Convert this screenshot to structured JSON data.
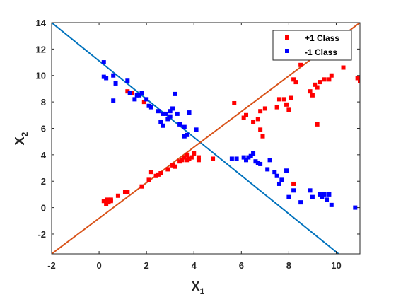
{
  "chart_data": {
    "type": "scatter",
    "xlim": [
      -2,
      11
    ],
    "ylim": [
      -3.5,
      14
    ],
    "xticks": [
      -2,
      0,
      2,
      4,
      6,
      8,
      10
    ],
    "yticks": [
      -2,
      0,
      2,
      4,
      6,
      8,
      10,
      12,
      14
    ],
    "xlabel": {
      "base": "X",
      "sub": "1"
    },
    "ylabel": {
      "base": "X",
      "sub": "2"
    },
    "grid": false,
    "legend_position": "top-right",
    "series": [
      {
        "name": "+1 Class",
        "color": "#ff0000",
        "marker": "square",
        "points": [
          [
            0.2,
            0.5
          ],
          [
            0.3,
            0.3
          ],
          [
            0.35,
            0.6
          ],
          [
            0.4,
            0.4
          ],
          [
            0.5,
            0.6
          ],
          [
            0.5,
            0.5
          ],
          [
            0.8,
            0.9
          ],
          [
            1.1,
            1.2
          ],
          [
            1.2,
            1.2
          ],
          [
            1.8,
            1.6
          ],
          [
            2.1,
            2.1
          ],
          [
            2.2,
            2.7
          ],
          [
            2.4,
            2.4
          ],
          [
            2.5,
            2.5
          ],
          [
            2.6,
            2.6
          ],
          [
            2.9,
            2.9
          ],
          [
            3.1,
            3.2
          ],
          [
            3.2,
            3.1
          ],
          [
            3.4,
            3.5
          ],
          [
            3.5,
            3.6
          ],
          [
            3.6,
            3.8
          ],
          [
            3.7,
            4.0
          ],
          [
            3.7,
            3.6
          ],
          [
            3.8,
            3.7
          ],
          [
            3.9,
            3.8
          ],
          [
            4.0,
            4.1
          ],
          [
            4.2,
            3.8
          ],
          [
            4.2,
            3.6
          ],
          [
            4.8,
            3.7
          ],
          [
            1.2,
            8.8
          ],
          [
            1.4,
            8.7
          ],
          [
            1.9,
            8.0
          ],
          [
            5.7,
            7.9
          ],
          [
            6.1,
            6.8
          ],
          [
            6.2,
            7.0
          ],
          [
            6.5,
            6.5
          ],
          [
            6.7,
            6.7
          ],
          [
            6.8,
            5.9
          ],
          [
            6.8,
            7.3
          ],
          [
            6.9,
            5.4
          ],
          [
            7.0,
            7.5
          ],
          [
            7.5,
            7.6
          ],
          [
            7.6,
            8.2
          ],
          [
            7.8,
            8.2
          ],
          [
            7.9,
            7.8
          ],
          [
            8.0,
            7.4
          ],
          [
            8.1,
            8.3
          ],
          [
            8.2,
            9.7
          ],
          [
            8.3,
            9.5
          ],
          [
            8.5,
            10.8
          ],
          [
            8.9,
            8.8
          ],
          [
            9.0,
            8.5
          ],
          [
            9.1,
            9.3
          ],
          [
            9.2,
            9.1
          ],
          [
            9.3,
            9.5
          ],
          [
            9.5,
            9.7
          ],
          [
            9.7,
            9.7
          ],
          [
            9.8,
            10.0
          ],
          [
            10.3,
            10.6
          ],
          [
            10.9,
            9.8
          ],
          [
            11.0,
            9.6
          ],
          [
            9.2,
            6.3
          ],
          [
            8.2,
            1.8
          ]
        ]
      },
      {
        "name": "-1 Class",
        "color": "#0000ff",
        "marker": "square",
        "points": [
          [
            0.2,
            11.0
          ],
          [
            0.2,
            9.9
          ],
          [
            0.3,
            9.8
          ],
          [
            0.6,
            10.0
          ],
          [
            0.7,
            9.4
          ],
          [
            0.6,
            8.1
          ],
          [
            1.2,
            9.6
          ],
          [
            1.3,
            8.7
          ],
          [
            1.5,
            8.2
          ],
          [
            1.6,
            8.5
          ],
          [
            1.7,
            8.5
          ],
          [
            1.8,
            8.7
          ],
          [
            2.0,
            8.2
          ],
          [
            2.1,
            7.7
          ],
          [
            2.2,
            7.6
          ],
          [
            2.5,
            7.3
          ],
          [
            2.6,
            6.5
          ],
          [
            2.7,
            7.1
          ],
          [
            2.8,
            7.1
          ],
          [
            2.9,
            6.7
          ],
          [
            3.0,
            7.3
          ],
          [
            3.1,
            7.5
          ],
          [
            3.0,
            6.9
          ],
          [
            3.2,
            8.6
          ],
          [
            3.3,
            7.1
          ],
          [
            3.4,
            6.3
          ],
          [
            3.6,
            6.1
          ],
          [
            3.7,
            5.5
          ],
          [
            3.8,
            7.2
          ],
          [
            4.1,
            5.9
          ],
          [
            2.7,
            6.2
          ],
          [
            3.6,
            5.4
          ],
          [
            5.6,
            3.7
          ],
          [
            5.8,
            3.7
          ],
          [
            6.1,
            3.8
          ],
          [
            6.2,
            3.6
          ],
          [
            6.3,
            3.8
          ],
          [
            6.4,
            3.9
          ],
          [
            6.5,
            4.1
          ],
          [
            6.6,
            3.5
          ],
          [
            6.7,
            3.4
          ],
          [
            6.8,
            3.3
          ],
          [
            7.1,
            2.9
          ],
          [
            7.2,
            3.6
          ],
          [
            7.4,
            2.7
          ],
          [
            7.5,
            2.4
          ],
          [
            7.6,
            1.8
          ],
          [
            7.7,
            2.1
          ],
          [
            7.9,
            2.8
          ],
          [
            8.2,
            1.3
          ],
          [
            8.5,
            0.4
          ],
          [
            8.9,
            1.3
          ],
          [
            9.0,
            0.8
          ],
          [
            9.3,
            1.0
          ],
          [
            9.4,
            0.8
          ],
          [
            9.5,
            1.0
          ],
          [
            9.6,
            0.6
          ],
          [
            9.7,
            1.0
          ],
          [
            9.8,
            0.2
          ],
          [
            10.8,
            0.0
          ],
          [
            8.0,
            0.8
          ]
        ]
      }
    ],
    "lines": [
      {
        "color": "#0072bd",
        "from": [
          -2,
          14
        ],
        "to": [
          10.1,
          -3.5
        ]
      },
      {
        "color": "#d95319",
        "from": [
          -2,
          -3.5
        ],
        "to": [
          11,
          14
        ]
      }
    ]
  }
}
